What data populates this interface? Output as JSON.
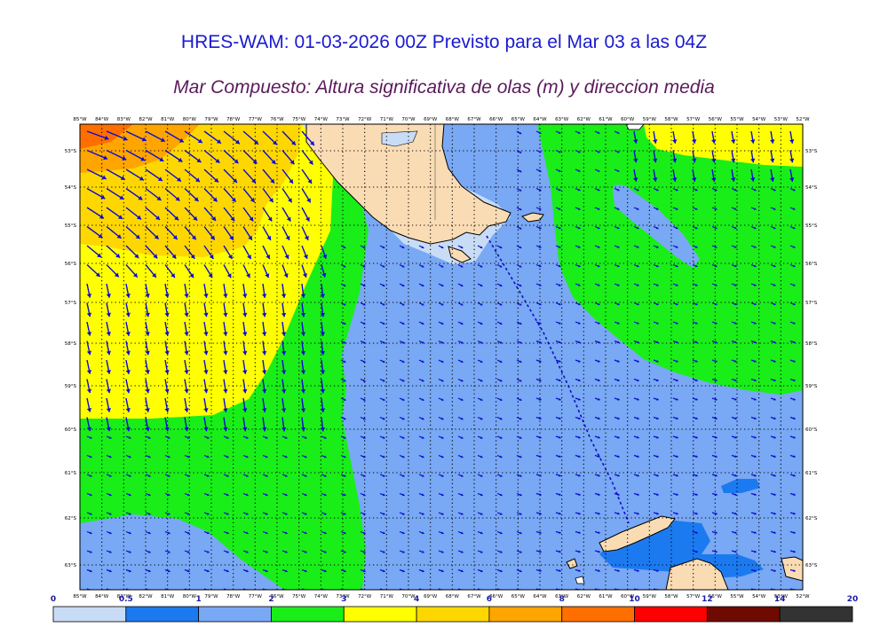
{
  "header": {
    "title": "HRES-WAM: 01-03-2026 00Z Previsto para el Mar 03 a las 04Z",
    "subtitle": "Mar Compuesto: Altura significativa de olas (m) y direccion media"
  },
  "map": {
    "lon_labels": [
      "85°W",
      "84°W",
      "83°W",
      "82°W",
      "81°W",
      "80°W",
      "79°W",
      "78°W",
      "77°W",
      "76°W",
      "75°W",
      "74°W",
      "73°W",
      "72°W",
      "71°W",
      "70°W",
      "69°W",
      "68°W",
      "67°W",
      "66°W",
      "65°W",
      "64°W",
      "63°W",
      "62°W",
      "61°W",
      "60°W",
      "59°W",
      "58°W",
      "57°W",
      "56°W",
      "55°W",
      "54°W",
      "53°W",
      "52°W"
    ],
    "lat_labels": [
      "53°S",
      "54°S",
      "55°S",
      "56°S",
      "57°S",
      "58°S",
      "59°S",
      "60°S",
      "61°S",
      "62°S",
      "63°S"
    ],
    "colors": {
      "band_0_0_5": "#c8dcf6",
      "band_0_5_1": "#1c7af0",
      "band_1_2": "#79a8f4",
      "band_2_3": "#19ee19",
      "band_3_4": "#ffff00",
      "band_4_6": "#ffd700",
      "band_6_8": "#ffa500",
      "band_8_10": "#ff6f00",
      "band_10_12": "#ff0000",
      "band_12_14": "#6e0a00",
      "band_14_20": "#333333",
      "land": "#fadcb4",
      "arrow": "#0a0ad0"
    }
  },
  "colorbar": {
    "labels": [
      "0",
      "0.5",
      "1",
      "2",
      "3",
      "4",
      "6",
      "8",
      "10",
      "12",
      "14",
      "20"
    ],
    "colors": [
      "#c8dcf6",
      "#1c7af0",
      "#79a8f4",
      "#19ee19",
      "#ffff00",
      "#ffd700",
      "#ffa500",
      "#ff6f00",
      "#ff0000",
      "#6e0a00",
      "#333333"
    ]
  }
}
